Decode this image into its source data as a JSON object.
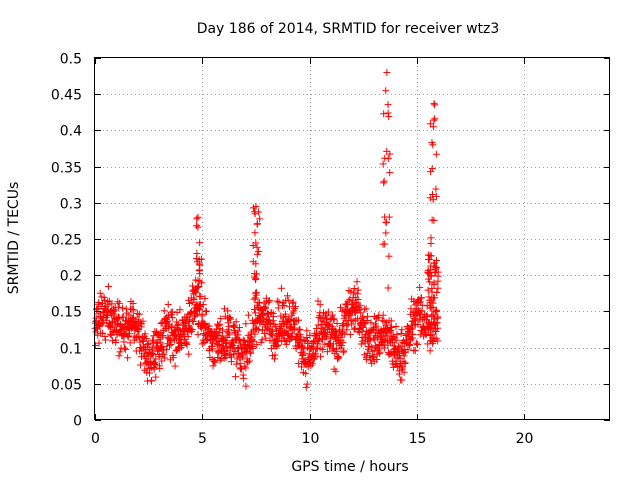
{
  "chart_data": {
    "type": "scatter",
    "title": "Day 186 of 2014, SRMTID for receiver wtz3",
    "xlabel": "GPS time / hours",
    "ylabel": "SRMTID / TECUs",
    "xlim": [
      0,
      24
    ],
    "ylim": [
      0,
      0.5
    ],
    "xticks": [
      0,
      5,
      10,
      15,
      20
    ],
    "xtick_labels": [
      "0",
      "5",
      "10",
      "15",
      "20"
    ],
    "yticks": [
      0,
      0.05,
      0.1,
      0.15,
      0.2,
      0.25,
      0.3,
      0.35,
      0.4,
      0.45,
      0.5
    ],
    "ytick_labels": [
      "0",
      "0.05",
      "0.1",
      "0.15",
      "0.2",
      "0.25",
      "0.3",
      "0.35",
      "0.4",
      "0.45",
      "0.5"
    ],
    "grid": true,
    "marker": "+",
    "marker_color": "#ff0000",
    "series": [
      {
        "name": "SRMTID",
        "x_range_hours": [
          0,
          16
        ],
        "typical_range": [
          0.05,
          0.22
        ],
        "extremes": [
          {
            "x": 4.8,
            "y": 0.28
          },
          {
            "x": 7.5,
            "y": 0.295
          },
          {
            "x": 13.6,
            "y": 0.48
          },
          {
            "x": 15.8,
            "y": 0.437
          }
        ]
      }
    ]
  }
}
